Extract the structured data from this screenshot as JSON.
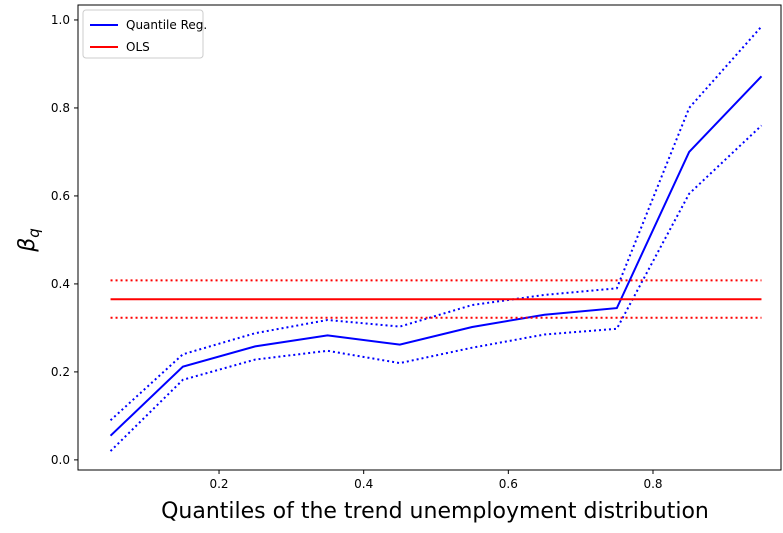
{
  "chart_data": {
    "type": "line",
    "xlabel": "Quantiles of the trend unemployment distribution",
    "ylabel": "β",
    "ylabel_sub": "q",
    "x": [
      0.05,
      0.15,
      0.25,
      0.35,
      0.45,
      0.55,
      0.65,
      0.75,
      0.85,
      0.95
    ],
    "series": [
      {
        "name": "Quantile Reg.",
        "color": "#0000ff",
        "values": [
          0.055,
          0.212,
          0.258,
          0.283,
          0.262,
          0.302,
          0.33,
          0.345,
          0.7,
          0.872
        ],
        "lower": [
          0.02,
          0.182,
          0.228,
          0.248,
          0.22,
          0.255,
          0.285,
          0.298,
          0.605,
          0.76
        ],
        "upper": [
          0.09,
          0.24,
          0.288,
          0.318,
          0.303,
          0.352,
          0.375,
          0.39,
          0.8,
          0.985
        ]
      },
      {
        "name": "OLS",
        "color": "#ff0000",
        "values": [
          0.365,
          0.365,
          0.365,
          0.365,
          0.365,
          0.365,
          0.365,
          0.365,
          0.365,
          0.365
        ],
        "lower": [
          0.323,
          0.323,
          0.323,
          0.323,
          0.323,
          0.323,
          0.323,
          0.323,
          0.323,
          0.323
        ],
        "upper": [
          0.408,
          0.408,
          0.408,
          0.408,
          0.408,
          0.408,
          0.408,
          0.408,
          0.408,
          0.408
        ]
      }
    ],
    "xlim": [
      0.005,
      0.977
    ],
    "ylim": [
      -0.023,
      1.034
    ],
    "xticks": [
      0.2,
      0.4,
      0.6,
      0.8
    ],
    "yticks": [
      {
        "value": 0,
        "label": "0.0"
      },
      0.2,
      0.4,
      0.6,
      0.8,
      {
        "value": 1,
        "label": "1.0"
      }
    ],
    "legend": "upper-left"
  }
}
